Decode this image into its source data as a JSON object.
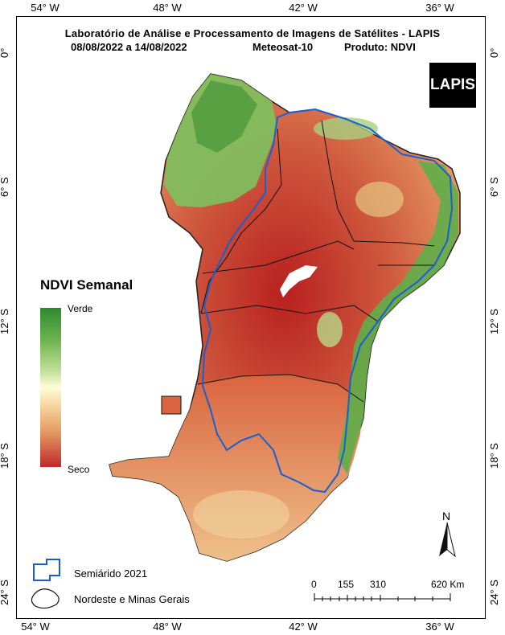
{
  "header": {
    "line1": "Laboratório de Análise e Processamento de Imagens de Satélites - LAPIS",
    "line2_dates": "08/08/2022  a  14/08/2022",
    "line2_sensor": "Meteosat-10",
    "line2_product": "Produto: NDVI"
  },
  "axes": {
    "longitudes": [
      "54° W",
      "48° W",
      "42° W",
      "36° W"
    ],
    "latitudes": [
      "0°",
      "6° S",
      "12° S",
      "18° S",
      "24° S"
    ]
  },
  "legend": {
    "title": "NDVI Semanal",
    "high_label": "Verde",
    "low_label": "Seco",
    "colors": [
      "#2f8a2f",
      "#c5e09a",
      "#fffdd8",
      "#e49a63",
      "#c0282a"
    ]
  },
  "logo": {
    "text": "LAPIS"
  },
  "map_legend": {
    "semiarid_label": "Semiárido 2021",
    "region_label": "Nordeste e Minas Gerais",
    "semiarid_color": "#1a5fd0"
  },
  "scale_bar": {
    "labels": [
      "0",
      "155",
      "310",
      "620 Km"
    ]
  },
  "north_arrow": {
    "label": "N"
  }
}
